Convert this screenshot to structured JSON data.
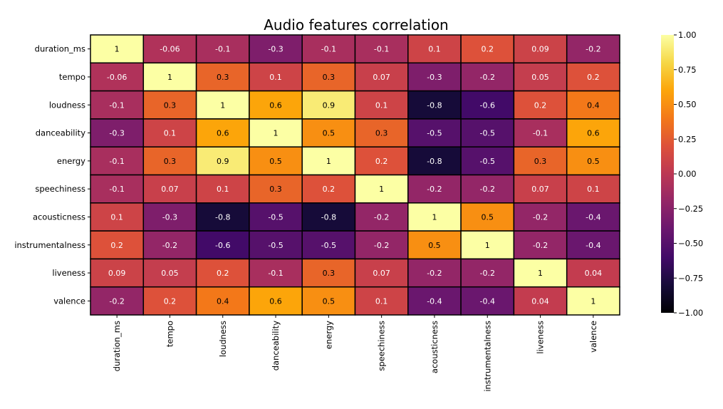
{
  "chart_data": {
    "type": "heatmap",
    "title": "Audio features correlation",
    "xlabel": "",
    "ylabel": "",
    "rows": [
      "duration_ms",
      "tempo",
      "loudness",
      "danceability",
      "energy",
      "speechiness",
      "acousticness",
      "instrumentalness",
      "liveness",
      "valence"
    ],
    "columns": [
      "duration_ms",
      "tempo",
      "loudness",
      "danceability",
      "energy",
      "speechiness",
      "acousticness",
      "instrumentalness",
      "liveness",
      "valence"
    ],
    "values": [
      [
        1,
        -0.06,
        -0.1,
        -0.3,
        -0.1,
        -0.1,
        0.1,
        0.2,
        0.09,
        -0.2
      ],
      [
        -0.06,
        1,
        0.3,
        0.1,
        0.3,
        0.07,
        -0.3,
        -0.2,
        0.05,
        0.2
      ],
      [
        -0.1,
        0.3,
        1,
        0.6,
        0.9,
        0.1,
        -0.8,
        -0.6,
        0.2,
        0.4
      ],
      [
        -0.3,
        0.1,
        0.6,
        1,
        0.5,
        0.3,
        -0.5,
        -0.5,
        -0.1,
        0.6
      ],
      [
        -0.1,
        0.3,
        0.9,
        0.5,
        1,
        0.2,
        -0.8,
        -0.5,
        0.3,
        0.5
      ],
      [
        -0.1,
        0.07,
        0.1,
        0.3,
        0.2,
        1,
        -0.2,
        -0.2,
        0.07,
        0.1
      ],
      [
        0.1,
        -0.3,
        -0.8,
        -0.5,
        -0.8,
        -0.2,
        1,
        0.5,
        -0.2,
        -0.4
      ],
      [
        0.2,
        -0.2,
        -0.6,
        -0.5,
        -0.5,
        -0.2,
        0.5,
        1,
        -0.2,
        -0.4
      ],
      [
        0.09,
        0.05,
        0.2,
        -0.1,
        0.3,
        0.07,
        -0.2,
        -0.2,
        1,
        0.04
      ],
      [
        -0.2,
        0.2,
        0.4,
        0.6,
        0.5,
        0.1,
        -0.4,
        -0.4,
        0.04,
        1
      ]
    ],
    "labels": [
      [
        "1",
        "-0.06",
        "-0.1",
        "-0.3",
        "-0.1",
        "-0.1",
        "0.1",
        "0.2",
        "0.09",
        "-0.2"
      ],
      [
        "-0.06",
        "1",
        "0.3",
        "0.1",
        "0.3",
        "0.07",
        "-0.3",
        "-0.2",
        "0.05",
        "0.2"
      ],
      [
        "-0.1",
        "0.3",
        "1",
        "0.6",
        "0.9",
        "0.1",
        "-0.8",
        "-0.6",
        "0.2",
        "0.4"
      ],
      [
        "-0.3",
        "0.1",
        "0.6",
        "1",
        "0.5",
        "0.3",
        "-0.5",
        "-0.5",
        "-0.1",
        "0.6"
      ],
      [
        "-0.1",
        "0.3",
        "0.9",
        "0.5",
        "1",
        "0.2",
        "-0.8",
        "-0.5",
        "0.3",
        "0.5"
      ],
      [
        "-0.1",
        "0.07",
        "0.1",
        "0.3",
        "0.2",
        "1",
        "-0.2",
        "-0.2",
        "0.07",
        "0.1"
      ],
      [
        "0.1",
        "-0.3",
        "-0.8",
        "-0.5",
        "-0.8",
        "-0.2",
        "1",
        "0.5",
        "-0.2",
        "-0.4"
      ],
      [
        "0.2",
        "-0.2",
        "-0.6",
        "-0.5",
        "-0.5",
        "-0.2",
        "0.5",
        "1",
        "-0.2",
        "-0.4"
      ],
      [
        "0.09",
        "0.05",
        "0.2",
        "-0.1",
        "0.3",
        "0.07",
        "-0.2",
        "-0.2",
        "1",
        "0.04"
      ],
      [
        "-0.2",
        "0.2",
        "0.4",
        "0.6",
        "0.5",
        "0.1",
        "-0.4",
        "-0.4",
        "0.04",
        "1"
      ]
    ],
    "colormap": "inferno",
    "vmin": -1.0,
    "vmax": 1.0,
    "colorbar": {
      "ticks": [
        1.0,
        0.75,
        0.5,
        0.25,
        0.0,
        -0.25,
        -0.5,
        -0.75,
        -1.0
      ],
      "tick_labels": [
        "1.00",
        "0.75",
        "0.50",
        "0.25",
        "0.00",
        "−0.25",
        "−0.50",
        "−0.75",
        "−1.00"
      ],
      "placement": "right"
    },
    "grid_line_color": "#000000",
    "text_color_light": "#ffffff",
    "text_color_dark": "#000000"
  }
}
